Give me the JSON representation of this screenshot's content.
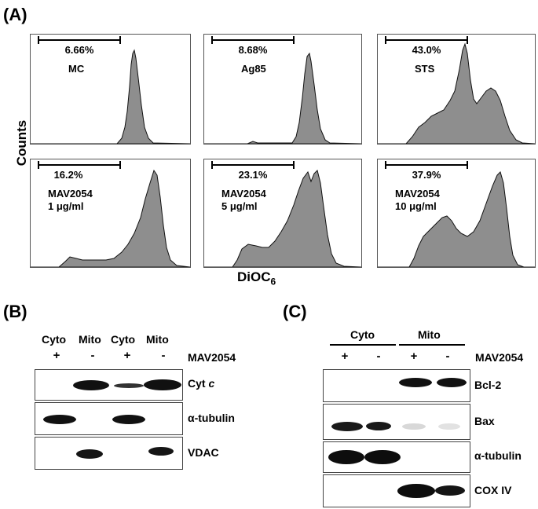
{
  "panel_a": {
    "label": "(A)",
    "y_axis_label": "Counts",
    "x_axis_label": "DiOC",
    "x_axis_subscript": "6",
    "histograms": [
      {
        "percent": "6.66%",
        "sample_line1": "MC",
        "sample_line2": ""
      },
      {
        "percent": "8.68%",
        "sample_line1": "Ag85",
        "sample_line2": ""
      },
      {
        "percent": "43.0%",
        "sample_line1": "STS",
        "sample_line2": ""
      },
      {
        "percent": "16.2%",
        "sample_line1": "MAV2054",
        "sample_line2": "1 μg/ml"
      },
      {
        "percent": "23.1%",
        "sample_line1": "MAV2054",
        "sample_line2": "5 μg/ml"
      },
      {
        "percent": "37.9%",
        "sample_line1": "MAV2054",
        "sample_line2": "10 μg/ml"
      }
    ]
  },
  "panel_b": {
    "label": "(B)",
    "lanes": [
      "Cyto",
      "Mito",
      "Cyto",
      "Mito"
    ],
    "treatment": [
      "+",
      "-",
      "+",
      "-"
    ],
    "treatment_label": "MAV2054",
    "blots": [
      {
        "label_main": "Cyt ",
        "label_italic": "c"
      },
      {
        "label_main": "α-tubulin",
        "label_italic": ""
      },
      {
        "label_main": "VDAC",
        "label_italic": ""
      }
    ]
  },
  "panel_c": {
    "label": "(C)",
    "groups": [
      "Cyto",
      "Mito"
    ],
    "treatment": [
      "+",
      "-",
      "+",
      "-"
    ],
    "treatment_label": "MAV2054",
    "blots": [
      "Bcl-2",
      "Bax",
      "α-tubulin",
      "COX IV"
    ]
  }
}
